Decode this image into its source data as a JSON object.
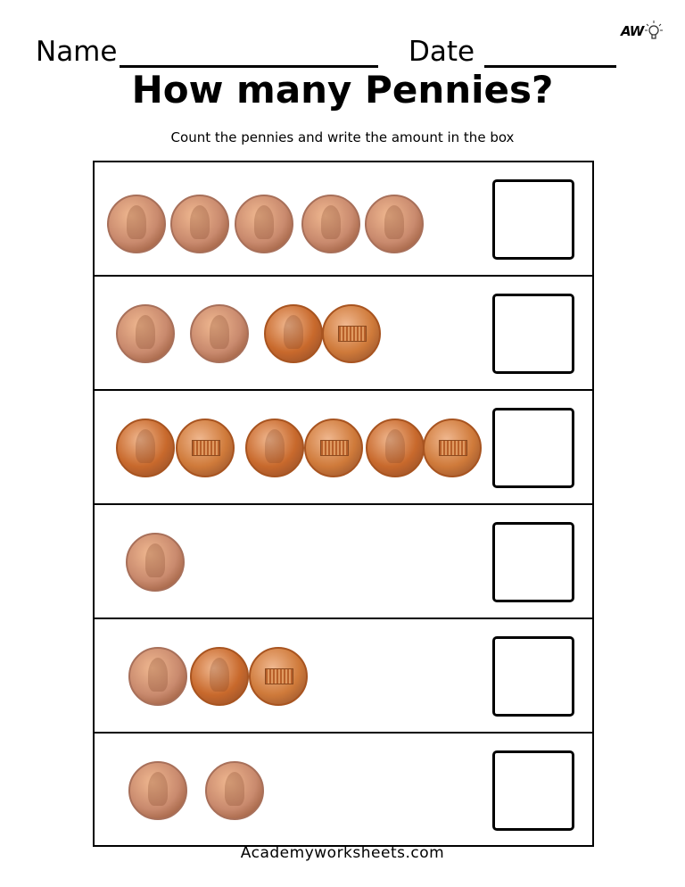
{
  "header": {
    "name_label": "Name",
    "date_label": "Date",
    "logo_text": "AW",
    "title": "How many Pennies?",
    "instructions": "Count the pennies and write the amount in the box"
  },
  "colors": {
    "pale_penny": "#c98a6e",
    "shiny_penny": "#c8692c",
    "shiny_penny_back": "#cf7a3a"
  },
  "rows": [
    {
      "coins": [
        "penny-front-pale",
        "penny-front-pale",
        "penny-front-pale",
        "penny-front-pale",
        "penny-front-pale"
      ],
      "answer": ""
    },
    {
      "coins": [
        "penny-front-pale",
        "penny-front-pale",
        "penny-front-shiny",
        "penny-back-shiny"
      ],
      "answer": ""
    },
    {
      "coins": [
        "penny-front-shiny",
        "penny-back-shiny",
        "penny-front-shiny",
        "penny-back-shiny",
        "penny-front-shiny",
        "penny-back-shiny"
      ],
      "answer": ""
    },
    {
      "coins": [
        "penny-front-pale"
      ],
      "answer": ""
    },
    {
      "coins": [
        "penny-front-pale",
        "penny-front-shiny",
        "penny-back-shiny"
      ],
      "answer": ""
    },
    {
      "coins": [
        "penny-front-pale",
        "penny-front-pale"
      ],
      "answer": ""
    }
  ],
  "footer": "Academyworksheets.com"
}
